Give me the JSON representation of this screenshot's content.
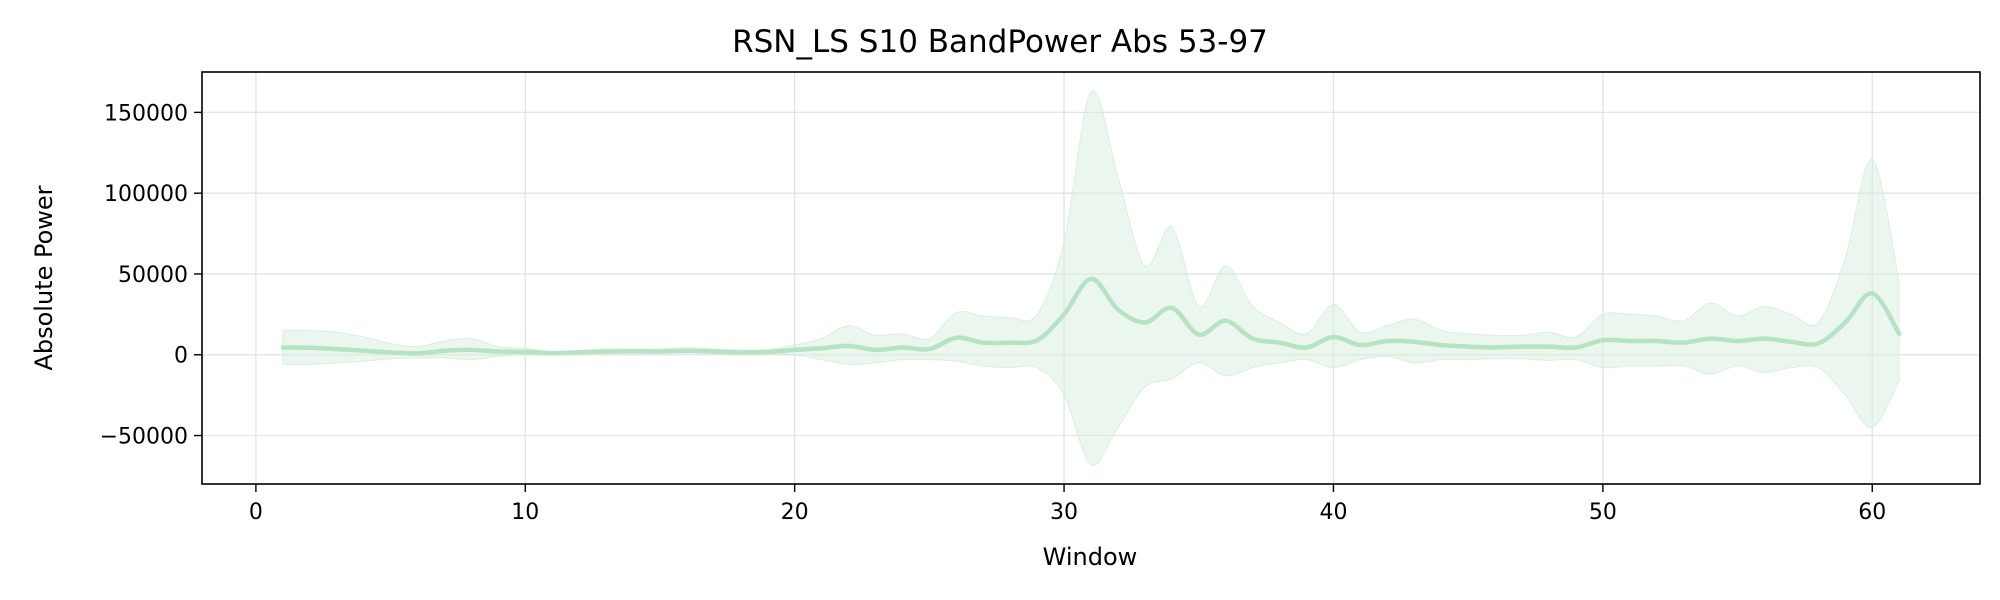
{
  "chart_data": {
    "type": "line",
    "title": "RSN_LS S10 BandPower Abs 53-97",
    "xlabel": "Window",
    "ylabel": "Absolute Power",
    "xlim": [
      -2,
      64
    ],
    "ylim": [
      -80000,
      175000
    ],
    "xticks": [
      0,
      10,
      20,
      30,
      40,
      50,
      60
    ],
    "yticks": [
      -50000,
      0,
      50000,
      100000,
      150000
    ],
    "ytick_labels": [
      "−50000",
      "0",
      "50000",
      "100000",
      "150000"
    ],
    "grid": true,
    "legend": "none",
    "colors": {
      "line": "#b5e3c3",
      "band": "#d8f0de"
    },
    "series": [
      {
        "x": [
          1,
          2,
          3,
          4,
          5,
          6,
          7,
          8,
          9,
          10,
          11,
          12,
          13,
          14,
          15,
          16,
          17,
          18,
          19,
          20,
          21,
          22,
          23,
          24,
          25,
          26,
          27,
          28,
          29,
          30,
          31,
          32,
          33,
          34,
          35,
          36,
          37,
          38,
          39,
          40,
          41,
          42,
          43,
          44,
          45,
          46,
          47,
          48,
          49,
          50,
          51,
          52,
          53,
          54,
          55,
          56,
          57,
          58,
          59,
          60,
          61
        ],
        "mean": [
          4500,
          4300,
          3500,
          2500,
          1500,
          800,
          2500,
          3000,
          2000,
          1800,
          1000,
          1500,
          2000,
          2200,
          2000,
          2500,
          2000,
          1500,
          1800,
          3000,
          4000,
          5500,
          3000,
          4500,
          3500,
          10500,
          7500,
          7500,
          9000,
          25000,
          47000,
          28000,
          20000,
          29000,
          12500,
          21000,
          10000,
          7500,
          4500,
          11000,
          6000,
          8500,
          8000,
          6000,
          5000,
          4500,
          5000,
          5000,
          4500,
          9000,
          8500,
          8500,
          7500,
          10000,
          8500,
          10000,
          8000,
          7000,
          20000,
          38000,
          13000
        ],
        "upper": [
          15000,
          15000,
          14000,
          11000,
          7000,
          5000,
          8500,
          10000,
          5000,
          4000,
          2000,
          2500,
          3500,
          3500,
          3500,
          4500,
          3500,
          3000,
          3000,
          6000,
          10000,
          18000,
          12000,
          13000,
          10000,
          26000,
          24000,
          23000,
          25000,
          70000,
          163000,
          110000,
          55000,
          79000,
          30000,
          55000,
          30000,
          20000,
          13000,
          31000,
          14000,
          18000,
          22000,
          15000,
          13000,
          12000,
          12000,
          14000,
          11000,
          25000,
          25000,
          24000,
          21000,
          32000,
          24000,
          30000,
          25000,
          20000,
          60000,
          121000,
          45000
        ],
        "lower": [
          -6000,
          -6000,
          -5000,
          -4000,
          -2500,
          -2000,
          -2000,
          -3000,
          -1000,
          0,
          0,
          500,
          1000,
          1000,
          1000,
          1000,
          800,
          500,
          500,
          0,
          -3000,
          -6000,
          -5000,
          -3000,
          -3000,
          -4000,
          -7000,
          -8000,
          -8000,
          -25000,
          -68000,
          -45000,
          -20000,
          -15000,
          -5000,
          -13000,
          -8000,
          -5000,
          -3000,
          -8000,
          -3000,
          -1000,
          -5000,
          -3000,
          -3000,
          -2500,
          -2500,
          -3500,
          -3000,
          -8000,
          -7000,
          -7000,
          -7000,
          -12000,
          -7000,
          -11000,
          -8000,
          -8000,
          -25000,
          -45000,
          -16000
        ]
      }
    ]
  }
}
